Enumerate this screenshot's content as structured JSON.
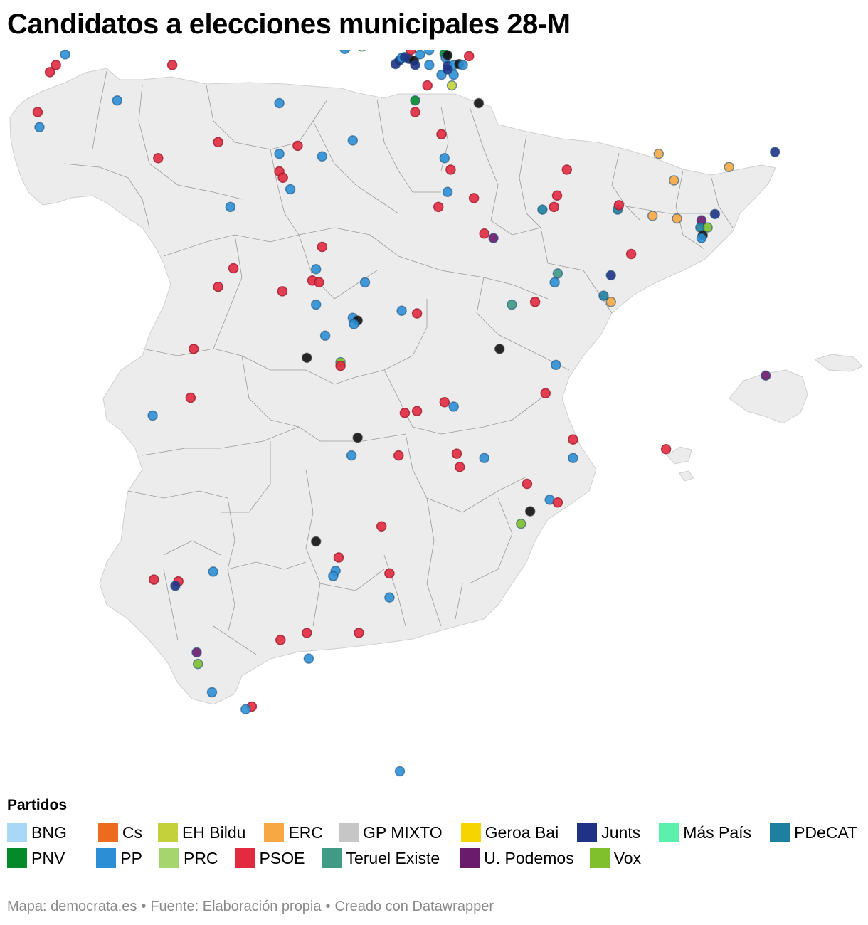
{
  "title": "Candidatos a elecciones municipales 28-M",
  "legend": {
    "title": "Partidos",
    "rows": [
      [
        {
          "label": "BNG",
          "color": "#a8d8f5"
        },
        {
          "label": "Cs",
          "color": "#ec6b1e"
        },
        {
          "label": "EH Bildu",
          "color": "#c4d13a"
        },
        {
          "label": "ERC",
          "color": "#f7a843"
        },
        {
          "label": "GP MIXTO",
          "color": "#c6c6c6"
        },
        {
          "label": "Geroa Bai",
          "color": "#f6d400"
        },
        {
          "label": "Junts",
          "color": "#1f3286"
        },
        {
          "label": "Más País",
          "color": "#5cf0ad"
        },
        {
          "label": "PDeCAT",
          "color": "#1e7fa0"
        }
      ],
      [
        {
          "label": "PNV",
          "color": "#058a2a"
        },
        {
          "label": "PP",
          "color": "#2c8fd6"
        },
        {
          "label": "PRC",
          "color": "#a6d56e"
        },
        {
          "label": "PSOE",
          "color": "#e22a40"
        },
        {
          "label": "Teruel Existe",
          "color": "#3f9a86"
        },
        {
          "label": "U. Podemos",
          "color": "#6a1b6c"
        },
        {
          "label": "Vox",
          "color": "#7fc02c"
        }
      ]
    ]
  },
  "footer": {
    "source": "Mapa: democrata.es",
    "fuente": "Fuente: Elaboración propia",
    "credit": "Creado con Datawrapper"
  },
  "map": {
    "land_color": "#ececec",
    "border_color": "#9a9a9a",
    "markers": [
      {
        "p": "BNG",
        "lon": -5.84,
        "lat": 43.55
      },
      {
        "p": "PP",
        "lon": -8.4,
        "lat": 43.37
      },
      {
        "p": "PSOE",
        "lon": -8.55,
        "lat": 43.25
      },
      {
        "p": "PSOE",
        "lon": -8.65,
        "lat": 43.17
      },
      {
        "p": "PSOE",
        "lon": -6.65,
        "lat": 43.25
      },
      {
        "p": "PP",
        "lon": -7.55,
        "lat": 42.85
      },
      {
        "p": "PSOE",
        "lon": -8.85,
        "lat": 42.72
      },
      {
        "p": "PP",
        "lon": -8.82,
        "lat": 42.55
      },
      {
        "p": "PSOE",
        "lon": -6.88,
        "lat": 42.2
      },
      {
        "p": "PSOE",
        "lon": -5.9,
        "lat": 42.38
      },
      {
        "p": "PP",
        "lon": -4.9,
        "lat": 42.82
      },
      {
        "p": "PSOE",
        "lon": -4.6,
        "lat": 42.34
      },
      {
        "p": "PP",
        "lon": -4.9,
        "lat": 42.25
      },
      {
        "p": "PSOE",
        "lon": -4.9,
        "lat": 42.05
      },
      {
        "p": "PSOE",
        "lon": -4.84,
        "lat": 41.98
      },
      {
        "p": "PP",
        "lon": -4.72,
        "lat": 41.85
      },
      {
        "p": "PP",
        "lon": -5.7,
        "lat": 41.65
      },
      {
        "p": "PP",
        "lon": -3.7,
        "lat": 42.4
      },
      {
        "p": "PP",
        "lon": -4.2,
        "lat": 42.22
      },
      {
        "p": "PRC",
        "lon": -3.8,
        "lat": 43.46
      },
      {
        "p": "PP",
        "lon": -3.83,
        "lat": 43.43
      },
      {
        "p": "PRC",
        "lon": -3.55,
        "lat": 43.46
      },
      {
        "p": "Junts",
        "lon": -3.0,
        "lat": 43.26
      },
      {
        "p": "Junts",
        "lon": -2.94,
        "lat": 43.3
      },
      {
        "p": "PP",
        "lon": -2.9,
        "lat": 43.33
      },
      {
        "p": "Junts",
        "lon": -2.85,
        "lat": 43.34
      },
      {
        "p": "Junts",
        "lon": -2.78,
        "lat": 43.32
      },
      {
        "p": "PSOE",
        "lon": -2.75,
        "lat": 43.42
      },
      {
        "p": "GP MIXTO",
        "lon": -2.7,
        "lat": 43.3
      },
      {
        "p": "Junts",
        "lon": -2.68,
        "lat": 43.25
      },
      {
        "p": "PP",
        "lon": -2.6,
        "lat": 43.37
      },
      {
        "p": "PP",
        "lon": -2.45,
        "lat": 43.42
      },
      {
        "p": "PP",
        "lon": -2.45,
        "lat": 43.25
      },
      {
        "p": "PNV",
        "lon": -2.2,
        "lat": 43.38
      },
      {
        "p": "PP",
        "lon": -2.18,
        "lat": 43.33
      },
      {
        "p": "GP MIXTO",
        "lon": -2.15,
        "lat": 43.36
      },
      {
        "p": "Junts",
        "lon": -2.15,
        "lat": 43.24
      },
      {
        "p": "PP",
        "lon": -2.05,
        "lat": 43.25
      },
      {
        "p": "GP MIXTO",
        "lon": -1.96,
        "lat": 43.26
      },
      {
        "p": "PP",
        "lon": -1.9,
        "lat": 43.25
      },
      {
        "p": "PSOE",
        "lon": -1.8,
        "lat": 43.35
      },
      {
        "p": "PP",
        "lon": -2.25,
        "lat": 43.14
      },
      {
        "p": "PP",
        "lon": -2.05,
        "lat": 43.14
      },
      {
        "p": "Junts",
        "lon": -2.15,
        "lat": 43.2
      },
      {
        "p": "PSOE",
        "lon": -2.48,
        "lat": 43.02
      },
      {
        "p": "EH Bildu",
        "lon": -2.08,
        "lat": 43.02
      },
      {
        "p": "PNV",
        "lon": -2.68,
        "lat": 42.85
      },
      {
        "p": "PSOE",
        "lon": -2.68,
        "lat": 42.72
      },
      {
        "p": "GP MIXTO",
        "lon": -1.64,
        "lat": 42.82
      },
      {
        "p": "PSOE",
        "lon": -2.25,
        "lat": 42.47
      },
      {
        "p": "PP",
        "lon": -2.2,
        "lat": 42.2
      },
      {
        "p": "PSOE",
        "lon": -2.1,
        "lat": 42.07
      },
      {
        "p": "PP",
        "lon": -2.15,
        "lat": 41.82
      },
      {
        "p": "PSOE",
        "lon": -2.3,
        "lat": 41.65
      },
      {
        "p": "PSOE",
        "lon": -1.72,
        "lat": 41.75
      },
      {
        "p": "PSOE",
        "lon": -1.55,
        "lat": 41.35
      },
      {
        "p": "U. Podemos",
        "lon": -1.4,
        "lat": 41.3
      },
      {
        "p": "PDeCAT",
        "lon": -0.6,
        "lat": 41.62
      },
      {
        "p": "PSOE",
        "lon": -0.2,
        "lat": 42.07
      },
      {
        "p": "PSOE",
        "lon": -0.36,
        "lat": 41.78
      },
      {
        "p": "PSOE",
        "lon": -0.41,
        "lat": 41.65
      },
      {
        "p": "PDeCAT",
        "lon": 0.63,
        "lat": 41.62
      },
      {
        "p": "PSOE",
        "lon": 0.65,
        "lat": 41.67
      },
      {
        "p": "ERC",
        "lon": 1.3,
        "lat": 42.25
      },
      {
        "p": "ERC",
        "lon": 1.55,
        "lat": 41.95
      },
      {
        "p": "ERC",
        "lon": 1.2,
        "lat": 41.55
      },
      {
        "p": "ERC",
        "lon": 1.6,
        "lat": 41.52
      },
      {
        "p": "ERC",
        "lon": 2.45,
        "lat": 42.1
      },
      {
        "p": "Junts",
        "lon": 3.2,
        "lat": 42.27
      },
      {
        "p": "U. Podemos",
        "lon": 2.0,
        "lat": 41.5
      },
      {
        "p": "Junts",
        "lon": 2.22,
        "lat": 41.57
      },
      {
        "p": "PDeCAT",
        "lon": 1.98,
        "lat": 41.42
      },
      {
        "p": "Vox",
        "lon": 2.1,
        "lat": 41.42
      },
      {
        "p": "GP MIXTO",
        "lon": 2.02,
        "lat": 41.33
      },
      {
        "p": "PP",
        "lon": 2.0,
        "lat": 41.3
      },
      {
        "p": "PSOE",
        "lon": 0.85,
        "lat": 41.12
      },
      {
        "p": "Junts",
        "lon": 0.52,
        "lat": 40.88
      },
      {
        "p": "Teruel Existe",
        "lon": -0.35,
        "lat": 40.9
      },
      {
        "p": "PP",
        "lon": -0.4,
        "lat": 40.8
      },
      {
        "p": "PDeCAT",
        "lon": 0.4,
        "lat": 40.65
      },
      {
        "p": "ERC",
        "lon": 0.52,
        "lat": 40.58
      },
      {
        "p": "Teruel Existe",
        "lon": -1.1,
        "lat": 40.55
      },
      {
        "p": "PSOE",
        "lon": -0.72,
        "lat": 40.58
      },
      {
        "p": "PSOE",
        "lon": -4.2,
        "lat": 41.2
      },
      {
        "p": "PP",
        "lon": -4.3,
        "lat": 40.95
      },
      {
        "p": "PSOE",
        "lon": -4.36,
        "lat": 40.82
      },
      {
        "p": "PSOE",
        "lon": -4.25,
        "lat": 40.8
      },
      {
        "p": "PSOE",
        "lon": -4.85,
        "lat": 40.7
      },
      {
        "p": "PSOE",
        "lon": -5.65,
        "lat": 40.96
      },
      {
        "p": "PSOE",
        "lon": -5.9,
        "lat": 40.75
      },
      {
        "p": "PP",
        "lon": -3.5,
        "lat": 40.8
      },
      {
        "p": "PP",
        "lon": -4.3,
        "lat": 40.55
      },
      {
        "p": "PP",
        "lon": -2.9,
        "lat": 40.48
      },
      {
        "p": "PSOE",
        "lon": -2.65,
        "lat": 40.45
      },
      {
        "p": "PP",
        "lon": -3.7,
        "lat": 40.4
      },
      {
        "p": "GP MIXTO",
        "lon": -3.62,
        "lat": 40.37
      },
      {
        "p": "PP",
        "lon": -3.68,
        "lat": 40.33
      },
      {
        "p": "PP",
        "lon": -4.15,
        "lat": 40.2
      },
      {
        "p": "GP MIXTO",
        "lon": -1.3,
        "lat": 40.05
      },
      {
        "p": "GP MIXTO",
        "lon": -4.45,
        "lat": 39.95
      },
      {
        "p": "Vox",
        "lon": -3.9,
        "lat": 39.9
      },
      {
        "p": "PSOE",
        "lon": -3.9,
        "lat": 39.86
      },
      {
        "p": "PSOE",
        "lon": -6.3,
        "lat": 40.05
      },
      {
        "p": "PSOE",
        "lon": -6.35,
        "lat": 39.5
      },
      {
        "p": "PP",
        "lon": -6.97,
        "lat": 39.3
      },
      {
        "p": "PP",
        "lon": -0.38,
        "lat": 39.87
      },
      {
        "p": "PSOE",
        "lon": -0.55,
        "lat": 39.55
      },
      {
        "p": "PSOE",
        "lon": -2.2,
        "lat": 39.45
      },
      {
        "p": "PP",
        "lon": -2.05,
        "lat": 39.4
      },
      {
        "p": "PSOE",
        "lon": -2.65,
        "lat": 39.35
      },
      {
        "p": "PSOE",
        "lon": -2.85,
        "lat": 39.33
      },
      {
        "p": "GP MIXTO",
        "lon": -3.62,
        "lat": 39.05
      },
      {
        "p": "PP",
        "lon": -3.72,
        "lat": 38.85
      },
      {
        "p": "PSOE",
        "lon": -2.95,
        "lat": 38.85
      },
      {
        "p": "PSOE",
        "lon": -2.0,
        "lat": 38.87
      },
      {
        "p": "PSOE",
        "lon": -1.95,
        "lat": 38.72
      },
      {
        "p": "PP",
        "lon": -1.55,
        "lat": 38.82
      },
      {
        "p": "PSOE",
        "lon": -0.1,
        "lat": 39.03
      },
      {
        "p": "PP",
        "lon": -0.1,
        "lat": 38.82
      },
      {
        "p": "PSOE",
        "lon": -0.85,
        "lat": 38.53
      },
      {
        "p": "PP",
        "lon": -0.48,
        "lat": 38.35
      },
      {
        "p": "PSOE",
        "lon": -0.35,
        "lat": 38.32
      },
      {
        "p": "GP MIXTO",
        "lon": -0.8,
        "lat": 38.22
      },
      {
        "p": "Vox",
        "lon": -0.95,
        "lat": 38.08
      },
      {
        "p": "U. Podemos",
        "lon": 3.05,
        "lat": 39.75
      },
      {
        "p": "PSOE",
        "lon": 1.42,
        "lat": 38.92
      },
      {
        "p": "PSOE",
        "lon": -3.23,
        "lat": 38.05
      },
      {
        "p": "GP MIXTO",
        "lon": -4.3,
        "lat": 37.88
      },
      {
        "p": "PSOE",
        "lon": -3.93,
        "lat": 37.7
      },
      {
        "p": "PP",
        "lon": -3.98,
        "lat": 37.55
      },
      {
        "p": "PP",
        "lon": -4.02,
        "lat": 37.49
      },
      {
        "p": "PSOE",
        "lon": -3.1,
        "lat": 37.52
      },
      {
        "p": "PP",
        "lon": -3.1,
        "lat": 37.25
      },
      {
        "p": "PSOE",
        "lon": -6.95,
        "lat": 37.45
      },
      {
        "p": "PSOE",
        "lon": -6.55,
        "lat": 37.43
      },
      {
        "p": "Junts",
        "lon": -6.6,
        "lat": 37.38
      },
      {
        "p": "PP",
        "lon": -5.98,
        "lat": 37.54
      },
      {
        "p": "PSOE",
        "lon": -3.6,
        "lat": 36.85
      },
      {
        "p": "PSOE",
        "lon": -4.45,
        "lat": 36.85
      },
      {
        "p": "PSOE",
        "lon": -4.88,
        "lat": 36.77
      },
      {
        "p": "PP",
        "lon": -4.42,
        "lat": 36.56
      },
      {
        "p": "U. Podemos",
        "lon": -6.25,
        "lat": 36.63
      },
      {
        "p": "Vox",
        "lon": -6.23,
        "lat": 36.5
      },
      {
        "p": "PP",
        "lon": -6.0,
        "lat": 36.18
      },
      {
        "p": "PSOE",
        "lon": -5.35,
        "lat": 36.02
      },
      {
        "p": "PP",
        "lon": -5.45,
        "lat": 35.99
      },
      {
        "p": "PP",
        "lon": -2.93,
        "lat": 35.29
      }
    ]
  }
}
